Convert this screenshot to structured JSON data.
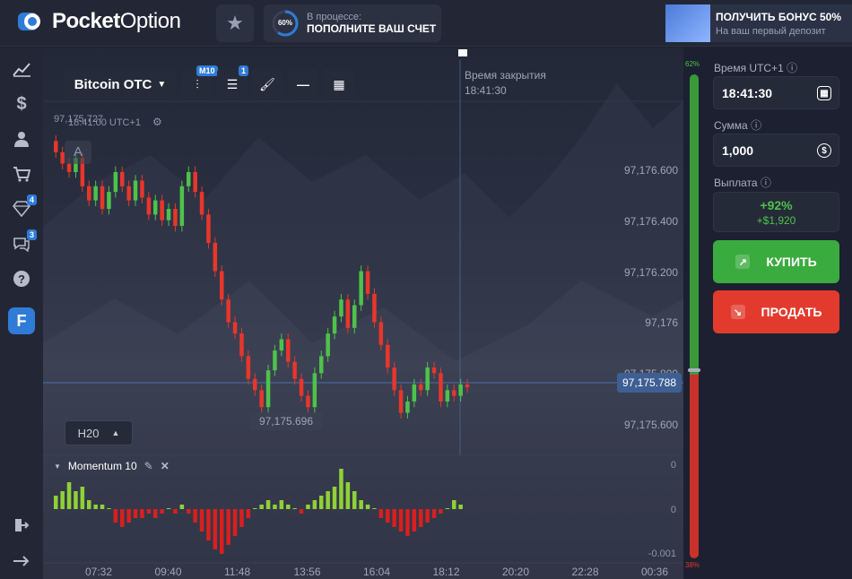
{
  "header": {
    "logo_bold": "Pocket",
    "logo_light": "Option",
    "deposit_percent": "60%",
    "deposit_status": "В процессе:",
    "deposit_action": "ПОПОЛНИТЕ ВАШ СЧЕТ",
    "bonus_title": "ПОЛУЧИТЬ БОНУС 50%",
    "bonus_subtitle": "На ваш первый депозит"
  },
  "sidebar": {
    "items": [
      {
        "name": "chart-icon",
        "glyph": "📈"
      },
      {
        "name": "dollar-icon",
        "glyph": "$"
      },
      {
        "name": "user-icon",
        "glyph": "👤"
      },
      {
        "name": "cart-icon",
        "glyph": "🛒"
      },
      {
        "name": "diamond-icon",
        "glyph": "◆"
      },
      {
        "name": "chat-icon",
        "glyph": "💬"
      },
      {
        "name": "help-icon",
        "glyph": "?"
      },
      {
        "name": "app-icon",
        "glyph": "F"
      }
    ],
    "diamond_badge": "4",
    "chat_badge": "3"
  },
  "toolbar": {
    "asset": "Bitcoin OTC",
    "timeframe_badge": "M10",
    "indicators_badge": "1"
  },
  "chart": {
    "current_time": "18:41:00 UTC+1",
    "price_ghost": "97,175.727",
    "letter": "A",
    "close_label": "Время закрытия",
    "close_time": "18:41:30",
    "current_price": "97,175.788",
    "low_label": "97,175.696",
    "h20": "H20",
    "price_axis": [
      "97,176.600",
      "97,176.400",
      "97,176.200",
      "97,176",
      "97,175.800",
      "97,175.600"
    ],
    "time_axis": [
      "07:32",
      "09:40",
      "11:48",
      "13:56",
      "16:04",
      "18:12",
      "20:20",
      "22:28",
      "00:36"
    ],
    "indicator_name": "Momentum 10",
    "indicator_axis": [
      "0",
      "0",
      "-0.001"
    ],
    "colors": {
      "up": "#4ec24a",
      "down": "#e8362b",
      "indicator_up": "#8fd136",
      "indicator_down": "#d91f1f"
    }
  },
  "chart_data": {
    "type": "candlestick",
    "title": "Bitcoin OTC",
    "ylim": [
      97175.55,
      97176.8
    ],
    "candles_close": [
      97176.62,
      97176.58,
      97176.55,
      97176.6,
      97176.5,
      97176.45,
      97176.5,
      97176.42,
      97176.48,
      97176.55,
      97176.5,
      97176.45,
      97176.52,
      97176.46,
      97176.4,
      97176.45,
      97176.38,
      97176.42,
      97176.36,
      97176.5,
      97176.55,
      97176.48,
      97176.4,
      97176.3,
      97176.2,
      97176.1,
      97176.02,
      97175.98,
      97175.9,
      97175.82,
      97175.78,
      97175.72,
      97175.85,
      97175.92,
      97175.96,
      97175.88,
      97175.82,
      97175.76,
      97175.72,
      97175.84,
      97175.9,
      97175.98,
      97176.04,
      97176.1,
      97176.0,
      97176.08,
      97176.2,
      97176.12,
      97176.02,
      97175.94,
      97175.86,
      97175.78,
      97175.7,
      97175.74,
      97175.8,
      97175.78,
      97175.86,
      97175.84,
      97175.74,
      97175.78,
      97175.76,
      97175.8,
      97175.79
    ],
    "momentum": [
      3,
      4,
      6,
      4,
      5,
      2,
      1,
      1,
      0,
      -3,
      -4,
      -3,
      -2,
      -2,
      -1,
      -2,
      -1,
      0,
      -1,
      1,
      -1,
      -3,
      -5,
      -7,
      -9,
      -10,
      -8,
      -6,
      -4,
      -2,
      0,
      1,
      2,
      1,
      2,
      1,
      0,
      -1,
      1,
      2,
      3,
      4,
      5,
      9,
      6,
      4,
      2,
      1,
      0,
      -2,
      -3,
      -4,
      -5,
      -6,
      -5,
      -4,
      -3,
      -2,
      -1,
      0,
      2,
      1
    ]
  },
  "panel": {
    "time_label": "Время UTC+1",
    "time_value": "18:41:30",
    "amount_label": "Сумма",
    "amount_value": "1,000",
    "payout_label": "Выплата",
    "payout_percent": "+92%",
    "payout_amount": "+$1,920",
    "buy_label": "КУПИТЬ",
    "sell_label": "ПРОДАТЬ",
    "sentiment_up": "62%",
    "sentiment_down": "38%"
  }
}
